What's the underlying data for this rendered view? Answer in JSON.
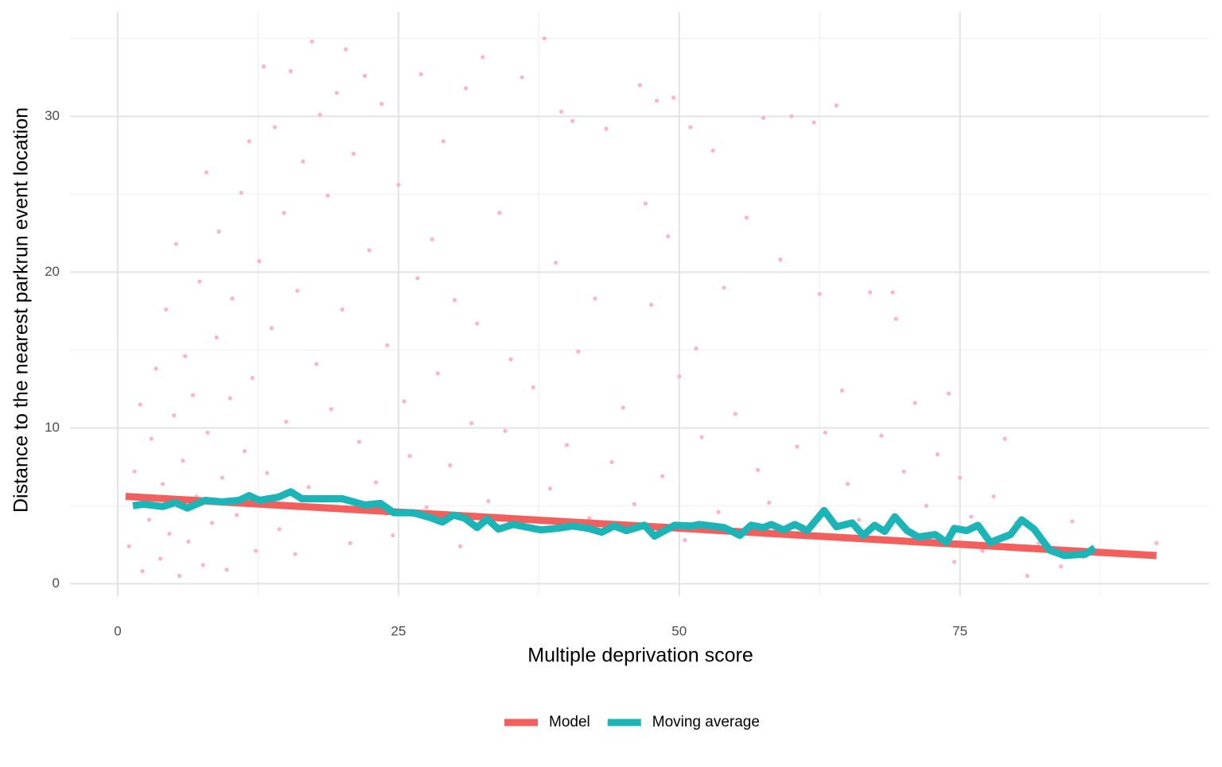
{
  "chart_data": {
    "type": "scatter",
    "x_label": "Multiple deprivation score",
    "y_label": "Distance to the nearest parkrun event location",
    "xlim": [
      -4.25,
      97.2
    ],
    "ylim": [
      -0.8,
      36.7
    ],
    "xticks": [
      0,
      25,
      50,
      75
    ],
    "yticks": [
      0,
      10,
      20,
      30
    ],
    "x_minor_ticks": [
      12.5,
      37.5,
      62.5,
      87.5
    ],
    "y_minor_ticks": [
      5,
      15,
      25,
      35
    ],
    "grid": true,
    "legend": "bottom",
    "point_color": "#ffb3c6",
    "x": [
      1,
      1.5,
      2,
      2.2,
      2.8,
      3,
      3.4,
      3.8,
      4,
      4.3,
      4.6,
      5,
      5.2,
      5.5,
      5.8,
      6,
      6.3,
      6.7,
      7,
      7.3,
      7.6,
      7.9,
      8,
      8.4,
      8.8,
      9,
      9.3,
      9.7,
      10,
      10.2,
      10.6,
      11,
      11.3,
      11.7,
      12,
      12.3,
      12.6,
      13,
      13.3,
      13.7,
      14,
      14.4,
      14.8,
      15,
      15.4,
      15.8,
      16,
      16.5,
      17,
      17.3,
      17.7,
      18,
      18.4,
      18.7,
      19,
      19.5,
      20,
      20.3,
      20.7,
      21,
      21.5,
      22,
      22.4,
      23,
      23.5,
      24,
      24.5,
      25,
      25.5,
      26,
      26.7,
      27,
      27.5,
      28,
      28.5,
      29,
      29.6,
      30,
      30.5,
      31,
      31.5,
      32,
      32.5,
      33,
      34,
      34.5,
      35,
      35.5,
      36,
      37,
      38,
      38.5,
      39,
      39.5,
      40,
      40.5,
      41,
      42,
      42.5,
      43.5,
      44,
      45,
      46,
      46.5,
      47,
      47.5,
      48,
      48.5,
      49,
      49.5,
      50,
      50.5,
      51,
      51.5,
      52,
      53,
      53.5,
      54,
      55,
      56,
      57,
      57.5,
      58,
      59,
      60,
      60.5,
      61,
      62,
      62.5,
      63,
      64,
      64.5,
      65,
      66,
      67,
      68,
      69,
      69.3,
      70,
      71,
      72,
      73,
      74,
      74.5,
      75,
      76,
      77,
      78,
      79,
      80,
      81,
      82,
      84,
      85,
      86,
      92.5
    ],
    "y": [
      2.4,
      7.2,
      11.5,
      0.8,
      4.1,
      9.3,
      13.8,
      1.6,
      6.4,
      17.6,
      3.2,
      10.8,
      21.8,
      0.5,
      7.9,
      14.6,
      2.7,
      12.1,
      5.6,
      19.4,
      1.2,
      26.4,
      9.7,
      3.9,
      15.8,
      22.6,
      6.8,
      0.9,
      11.9,
      18.3,
      4.4,
      25.1,
      8.5,
      28.4,
      13.2,
      2.1,
      20.7,
      33.2,
      7.1,
      16.4,
      29.3,
      3.5,
      23.8,
      10.4,
      32.9,
      1.9,
      18.8,
      27.1,
      6.2,
      34.8,
      14.1,
      30.1,
      4.8,
      24.9,
      11.2,
      31.5,
      17.6,
      34.3,
      2.6,
      27.6,
      9.1,
      32.6,
      21.4,
      6.5,
      30.8,
      15.3,
      3.1,
      25.6,
      11.7,
      8.2,
      19.6,
      32.7,
      4.9,
      22.1,
      13.5,
      28.4,
      7.6,
      18.2,
      2.4,
      31.8,
      10.3,
      16.7,
      33.8,
      5.3,
      23.8,
      9.8,
      14.4,
      3.9,
      32.5,
      12.6,
      35.0,
      6.1,
      20.6,
      30.3,
      8.9,
      29.7,
      14.9,
      4.2,
      18.3,
      29.2,
      7.8,
      11.3,
      5.1,
      32.0,
      24.4,
      17.9,
      31.0,
      6.9,
      22.3,
      31.2,
      13.3,
      2.8,
      29.3,
      15.1,
      9.4,
      27.8,
      4.6,
      19.0,
      10.9,
      23.5,
      7.3,
      29.9,
      5.2,
      20.8,
      30.0,
      8.8,
      3.7,
      29.6,
      18.6,
      9.7,
      30.7,
      12.4,
      6.4,
      4.1,
      18.7,
      9.5,
      18.7,
      17.0,
      7.2,
      11.6,
      5.0,
      8.3,
      12.2,
      1.4,
      6.8,
      4.3,
      2.1,
      5.6,
      9.3,
      3.9,
      0.5,
      2.6,
      1.1,
      4.0,
      1.7,
      2.6
    ],
    "series": [
      {
        "name": "Model",
        "color": "#f25f5c",
        "x": [
          0.7,
          92.5
        ],
        "values": [
          5.6,
          1.8
        ]
      },
      {
        "name": "Moving average",
        "color": "#1cb5b7",
        "x": [
          1.35,
          2.3,
          4,
          5.1,
          6.2,
          7.8,
          9.3,
          10.8,
          11.7,
          12.6,
          14.3,
          15.4,
          16.4,
          17.8,
          20,
          22,
          23.4,
          24.6,
          26.3,
          27.8,
          28.9,
          29.9,
          30.9,
          32,
          32.9,
          33.9,
          35.2,
          36.6,
          37.7,
          39.1,
          40.5,
          41.9,
          43.1,
          44.2,
          45.3,
          46.9,
          47.8,
          49.6,
          51.1,
          51.8,
          54,
          55.4,
          56.4,
          57.5,
          58.2,
          59.3,
          60.3,
          61.4,
          62.9,
          64,
          65.4,
          66.4,
          67.4,
          68.3,
          69.2,
          70.3,
          71.3,
          72.8,
          73.8,
          74.5,
          75.6,
          76.6,
          77.7,
          79.5,
          80.5,
          81.6,
          83,
          84.3,
          85.3,
          86.2,
          87
        ],
        "values": [
          5.0,
          5.1,
          4.95,
          5.2,
          4.85,
          5.35,
          5.25,
          5.35,
          5.65,
          5.35,
          5.55,
          5.9,
          5.45,
          5.45,
          5.45,
          5.05,
          5.15,
          4.55,
          4.55,
          4.25,
          3.95,
          4.4,
          4.2,
          3.6,
          4.15,
          3.5,
          3.8,
          3.6,
          3.45,
          3.55,
          3.7,
          3.55,
          3.3,
          3.7,
          3.4,
          3.75,
          3.05,
          3.75,
          3.7,
          3.8,
          3.6,
          3.1,
          3.75,
          3.6,
          3.8,
          3.45,
          3.8,
          3.4,
          4.7,
          3.65,
          3.9,
          3.1,
          3.75,
          3.35,
          4.3,
          3.4,
          3.0,
          3.15,
          2.65,
          3.55,
          3.4,
          3.75,
          2.65,
          3.15,
          4.1,
          3.5,
          2.15,
          1.8,
          1.85,
          1.9,
          2.3
        ]
      }
    ]
  }
}
